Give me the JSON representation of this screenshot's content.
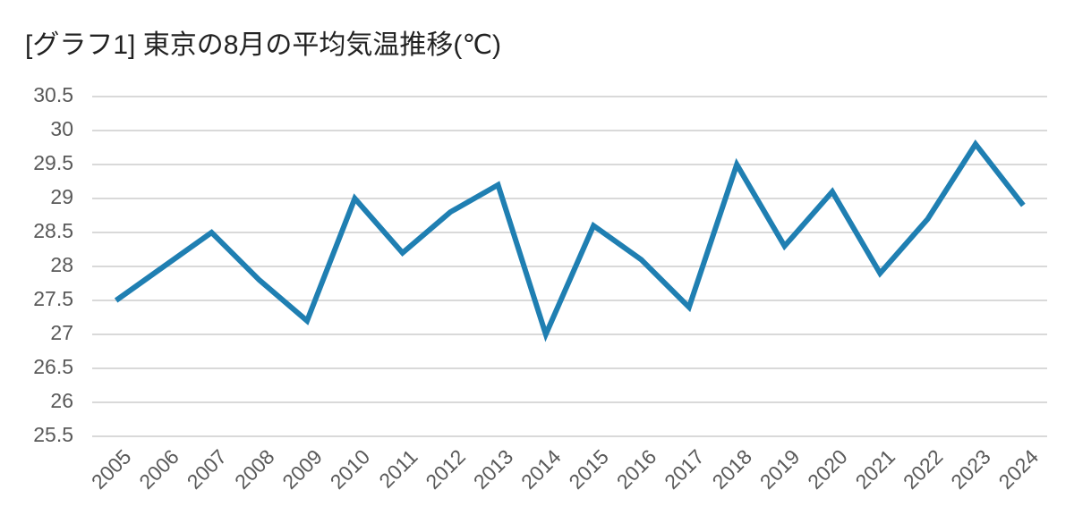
{
  "chart_data": {
    "type": "line",
    "title": "[グラフ1] 東京の8月の平均気温推移(℃)",
    "categories": [
      "2005",
      "2006",
      "2007",
      "2008",
      "2009",
      "2010",
      "2011",
      "2012",
      "2013",
      "2014",
      "2015",
      "2016",
      "2017",
      "2018",
      "2019",
      "2020",
      "2021",
      "2022",
      "2023",
      "2024"
    ],
    "series": [
      {
        "name": "平均気温",
        "color": "#1f7fb2",
        "values": [
          27.5,
          28.0,
          28.5,
          27.8,
          27.2,
          29.0,
          28.2,
          28.8,
          29.2,
          27.0,
          28.6,
          28.1,
          27.4,
          29.5,
          28.3,
          29.1,
          27.9,
          28.7,
          29.8,
          28.9
        ]
      }
    ],
    "ylim": [
      25.5,
      30.5
    ],
    "yticks": [
      25.5,
      26,
      26.5,
      27,
      27.5,
      28,
      28.5,
      29,
      29.5,
      30,
      30.5
    ],
    "grid": true
  }
}
